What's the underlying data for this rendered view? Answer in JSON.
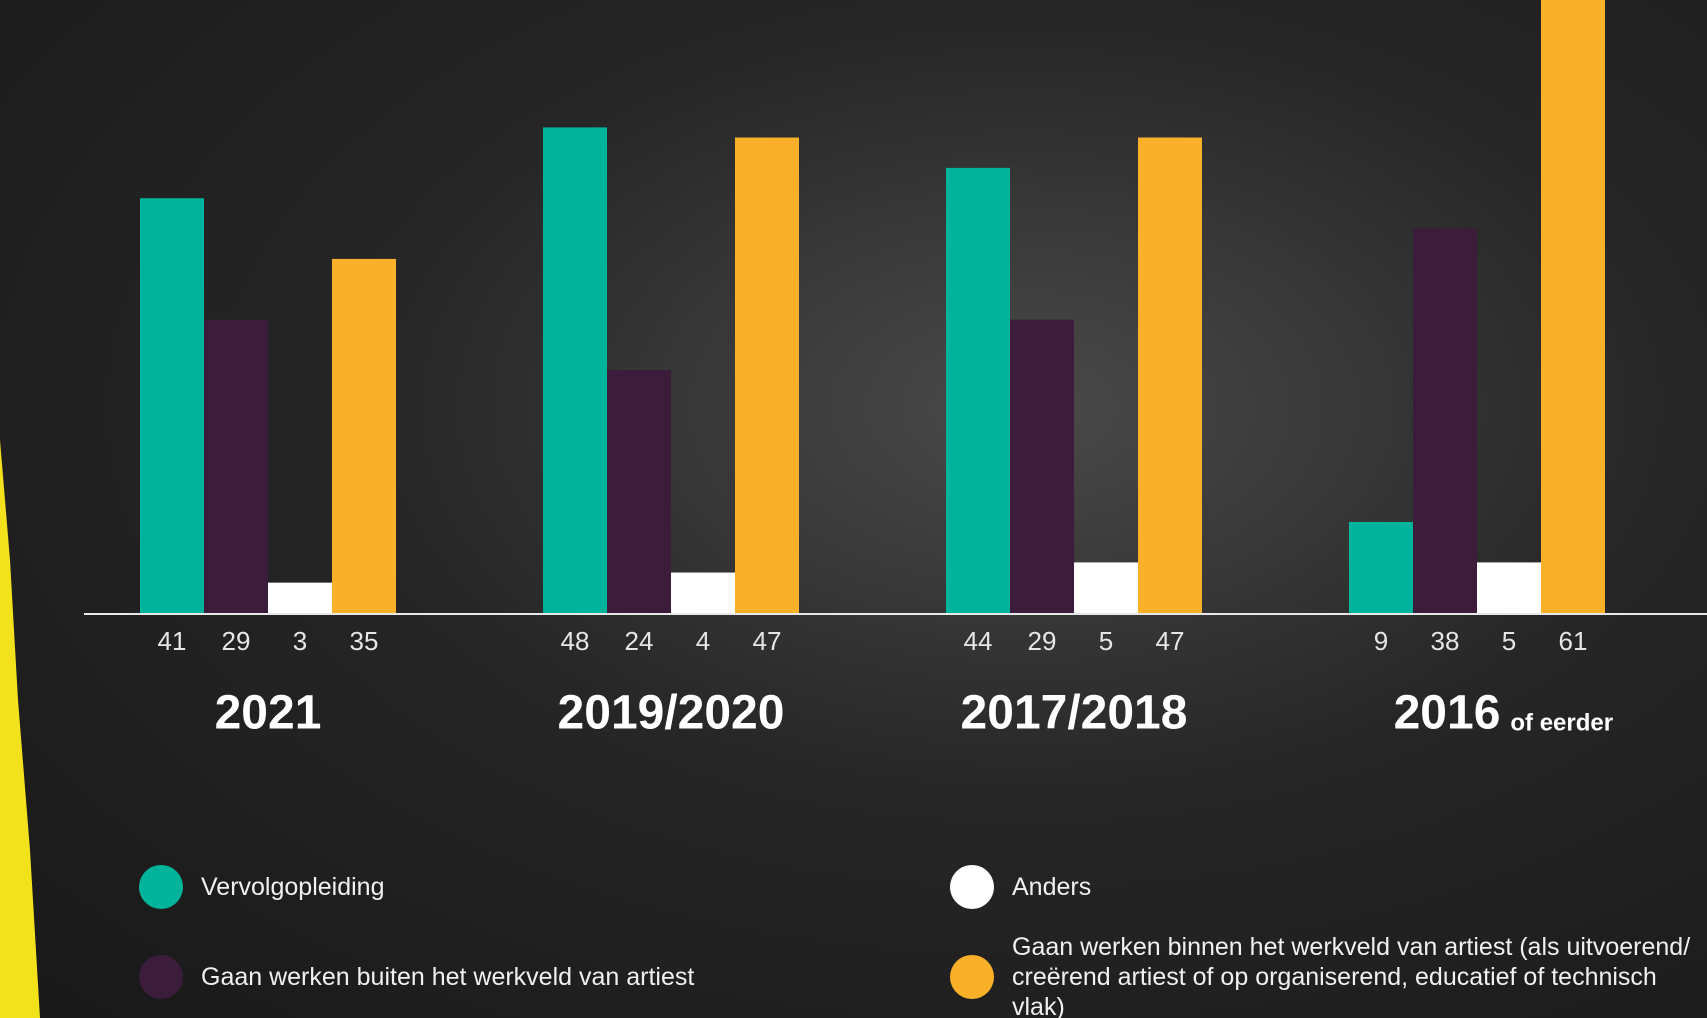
{
  "chart_data": {
    "type": "bar",
    "categories": [
      "2021",
      "2019/2020",
      "2017/2018",
      "2016"
    ],
    "category_note": "of eerder",
    "series": [
      {
        "name": "Vervolgopleiding",
        "color": "#00b39b",
        "values": [
          41,
          48,
          44,
          9
        ]
      },
      {
        "name": "Gaan werken buiten het werkveld van artiest",
        "color": "#3b1c3a",
        "values": [
          29,
          24,
          29,
          38
        ]
      },
      {
        "name": "Anders",
        "color": "#ffffff",
        "values": [
          3,
          4,
          5,
          5
        ]
      },
      {
        "name": "Gaan werken binnen het werkveld van artiest (als uitvoerend/ creërend artiest of op organiserend, educatief of technisch vlak)",
        "color": "#fbb02a",
        "values": [
          35,
          47,
          47,
          61
        ]
      }
    ],
    "ylim": [
      0,
      60
    ]
  }
}
